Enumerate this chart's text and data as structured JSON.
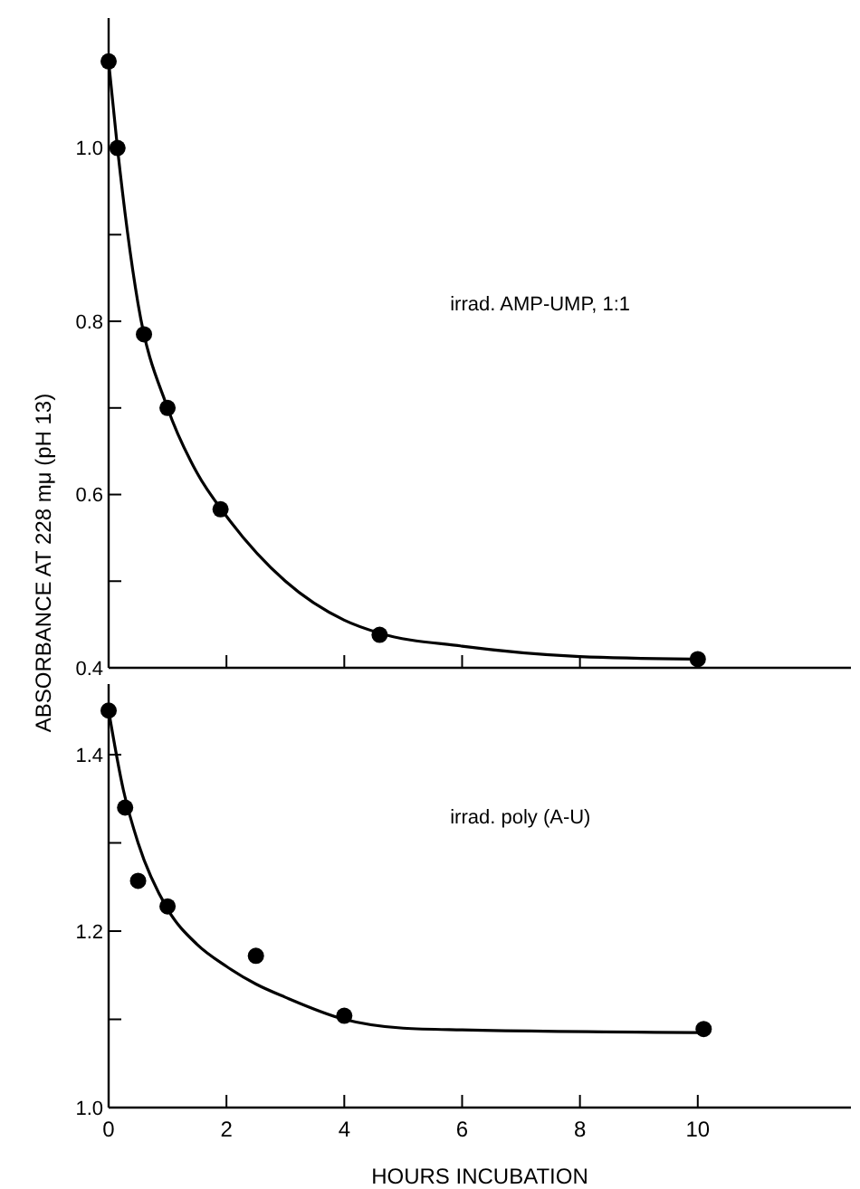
{
  "chart_data": [
    {
      "type": "scatter",
      "ylabel": "ABSORBANCE AT 228 mμ (pH 13)",
      "xlim": [
        0,
        12.6
      ],
      "xticks": [
        {
          "value": 0,
          "label": null
        },
        {
          "value": 2,
          "label": null
        },
        {
          "value": 4,
          "label": null
        },
        {
          "value": 6,
          "label": null
        },
        {
          "value": 8,
          "label": null
        },
        {
          "value": 10,
          "label": null
        }
      ],
      "ylim": [
        0.4,
        1.15
      ],
      "yticks": [
        {
          "value": 0.4,
          "label": "0.4"
        },
        {
          "value": 0.5,
          "label": null
        },
        {
          "value": 0.6,
          "label": "0.6"
        },
        {
          "value": 0.7,
          "label": null
        },
        {
          "value": 0.8,
          "label": "0.8"
        },
        {
          "value": 0.9,
          "label": null
        },
        {
          "value": 1.0,
          "label": "1.0"
        }
      ],
      "tick_labels": "y",
      "grid": false,
      "series": [
        {
          "name": "irrad. AMP-UMP, 1:1",
          "color": "#000000",
          "marker": "circle",
          "x": [
            0,
            0.15,
            0.6,
            1,
            1.9,
            4.6,
            10
          ],
          "values": [
            1.1,
            1.0,
            0.785,
            0.7,
            0.583,
            0.438,
            0.41
          ]
        },
        {
          "type": "line",
          "color": "#000000",
          "x": [
            0,
            0.15,
            0.5,
            1,
            1.5,
            2,
            3,
            4,
            4.6,
            6,
            8,
            10
          ],
          "values": [
            1.1,
            1.0,
            0.82,
            0.7,
            0.625,
            0.575,
            0.5,
            0.455,
            0.44,
            0.425,
            0.413,
            0.41
          ]
        }
      ]
    },
    {
      "type": "scatter",
      "xlabel": "HOURS INCUBATION",
      "xlim": [
        0,
        12.6
      ],
      "xticks": [
        0,
        2,
        4,
        6,
        8,
        10
      ],
      "ylim": [
        1.0,
        1.48
      ],
      "yticks": [
        {
          "value": 1.0,
          "label": "1.0"
        },
        {
          "value": 1.1,
          "label": null
        },
        {
          "value": 1.2,
          "label": "1.2"
        },
        {
          "value": 1.3,
          "label": null
        },
        {
          "value": 1.4,
          "label": "1.4"
        }
      ],
      "grid": false,
      "series": [
        {
          "name": "irrad. poly (A-U)",
          "color": "#000000",
          "marker": "circle",
          "x": [
            0,
            0.28,
            0.5,
            1,
            2.5,
            4,
            10.1
          ],
          "values": [
            1.45,
            1.34,
            1.257,
            1.228,
            1.172,
            1.104,
            1.089
          ]
        },
        {
          "type": "line",
          "color": "#000000",
          "x": [
            0,
            0.25,
            0.5,
            1,
            1.5,
            2,
            2.5,
            3,
            4,
            5,
            6,
            10
          ],
          "values": [
            1.45,
            1.36,
            1.3,
            1.225,
            1.185,
            1.16,
            1.14,
            1.125,
            1.1,
            1.09,
            1.088,
            1.085
          ]
        }
      ]
    }
  ]
}
